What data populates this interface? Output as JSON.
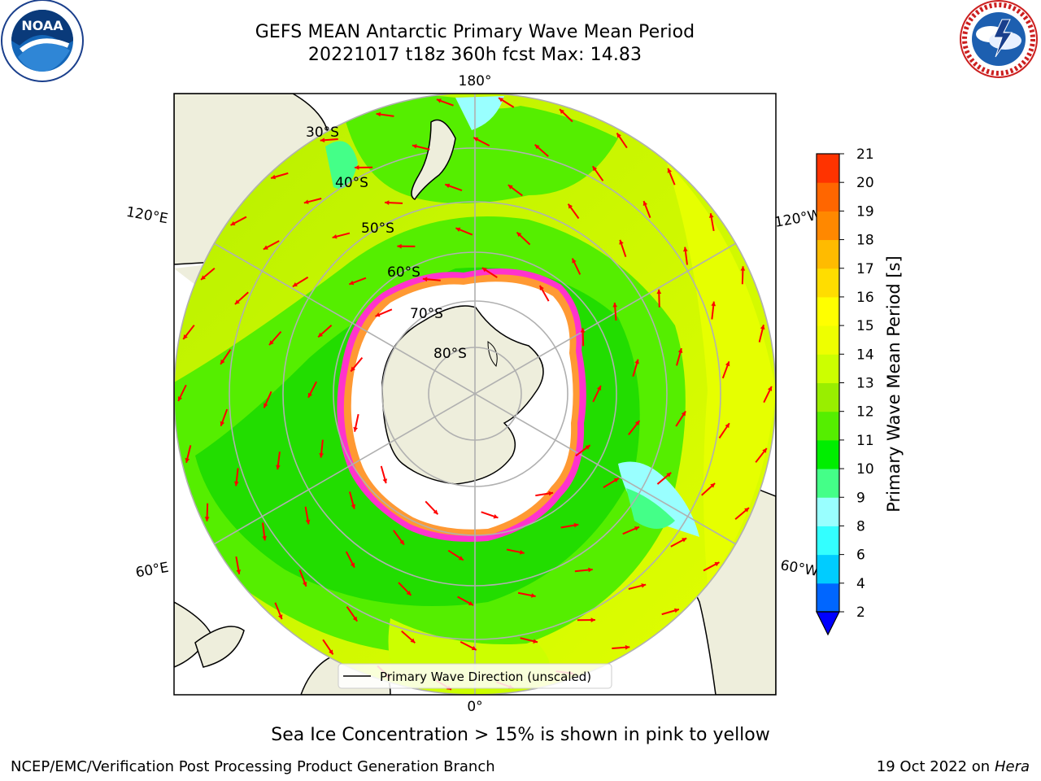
{
  "header": {
    "title_line1": "GEFS MEAN Antarctic Primary Wave Mean Period",
    "title_line2": "20221017 t18z 360h fcst   Max: 14.83"
  },
  "logos": {
    "left": {
      "name": "noaa-logo",
      "text": "NOAA",
      "ring_text": "NATIONAL OCEANIC AND ATMOSPHERIC ADMINISTRATION · U.S. DEPARTMENT OF COMMERCE"
    },
    "right": {
      "name": "nws-logo",
      "ring_text": "NATIONAL WEATHER SERVICE"
    }
  },
  "map": {
    "projection": "south-polar-stereographic",
    "longitude_labels": {
      "top": "180°",
      "bottom": "0°",
      "upper_left": "120°E",
      "upper_right": "120°W",
      "lower_left": "60°E",
      "lower_right": "60°W"
    },
    "latitude_labels": [
      "30°S",
      "40°S",
      "50°S",
      "60°S",
      "70°S",
      "80°S"
    ],
    "legend_label": "Primary Wave Direction (unscaled)",
    "colors": {
      "land": "#eeeedc",
      "ice_edge": "#ff33cc",
      "ice_fringe": "#ff9933",
      "arrow": "#ff0000"
    }
  },
  "colorbar": {
    "label": "Primary Wave Mean Period [s]",
    "ticks": [
      "2",
      "4",
      "6",
      "8",
      "9",
      "10",
      "11",
      "12",
      "13",
      "14",
      "15",
      "16",
      "17",
      "18",
      "19",
      "20",
      "21"
    ],
    "colors": [
      "#0066ff",
      "#00ccff",
      "#33ffff",
      "#99ffff",
      "#44ff88",
      "#00ee00",
      "#55ee00",
      "#99ee00",
      "#ccff00",
      "#eeff00",
      "#ffff00",
      "#ffdd00",
      "#ffbb00",
      "#ff8800",
      "#ff6600",
      "#ff3300"
    ],
    "extend": "min"
  },
  "caption": "Sea Ice Concentration > 15% is shown in pink to yellow",
  "footer": {
    "left": "NCEP/EMC/Verification Post Processing Product Generation Branch",
    "right_prefix": "19 Oct 2022 on ",
    "right_machine": "Hera"
  }
}
